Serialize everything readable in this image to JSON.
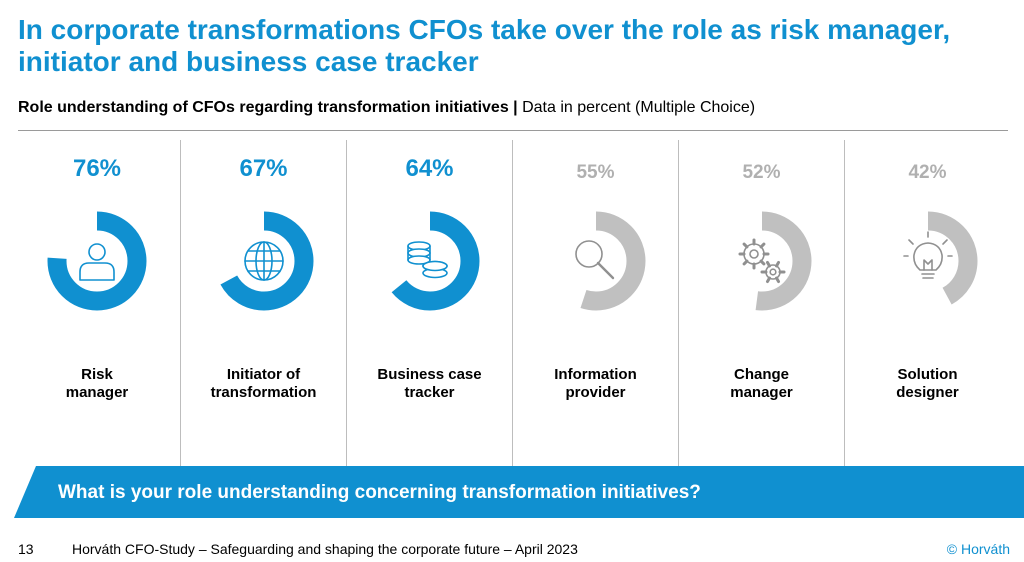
{
  "title": "In corporate transformations CFOs take over the role as risk manager, initiator and business case tracker",
  "subtitle": {
    "bold": "Role understanding of CFOs regarding transformation initiatives",
    "separator": " | ",
    "normal": "Data in percent (Multiple Choice)"
  },
  "colors": {
    "accent": "#1090d0",
    "muted": "#c0c0c0",
    "muted_text": "#b0b0b0"
  },
  "chart_data": {
    "type": "donut",
    "unit": "%",
    "categories": [
      "Risk manager",
      "Initiator of transformation",
      "Business case tracker",
      "Information provider",
      "Change manager",
      "Solution designer"
    ],
    "values": [
      76,
      67,
      64,
      55,
      52,
      42
    ],
    "value_labels": [
      "76%",
      "67%",
      "64%",
      "55%",
      "52%",
      "42%"
    ],
    "label_lines": [
      [
        "Risk",
        "manager"
      ],
      [
        "Initiator of",
        "transformation"
      ],
      [
        "Business case",
        "tracker"
      ],
      [
        "Information",
        "provider"
      ],
      [
        "Change",
        "manager"
      ],
      [
        "Solution",
        "designer"
      ]
    ],
    "highlighted": [
      true,
      true,
      true,
      false,
      false,
      false
    ],
    "icons": [
      "person-icon",
      "globe-icon",
      "coins-icon",
      "magnifier-icon",
      "gears-icon",
      "lightbulb-icon"
    ]
  },
  "banner": {
    "text": "What is your role understanding concerning transformation initiatives?"
  },
  "footer": {
    "page_number": "13",
    "source": "Horváth CFO-Study – Safeguarding and shaping the corporate future – April 2023",
    "copyright": "© Horváth"
  }
}
